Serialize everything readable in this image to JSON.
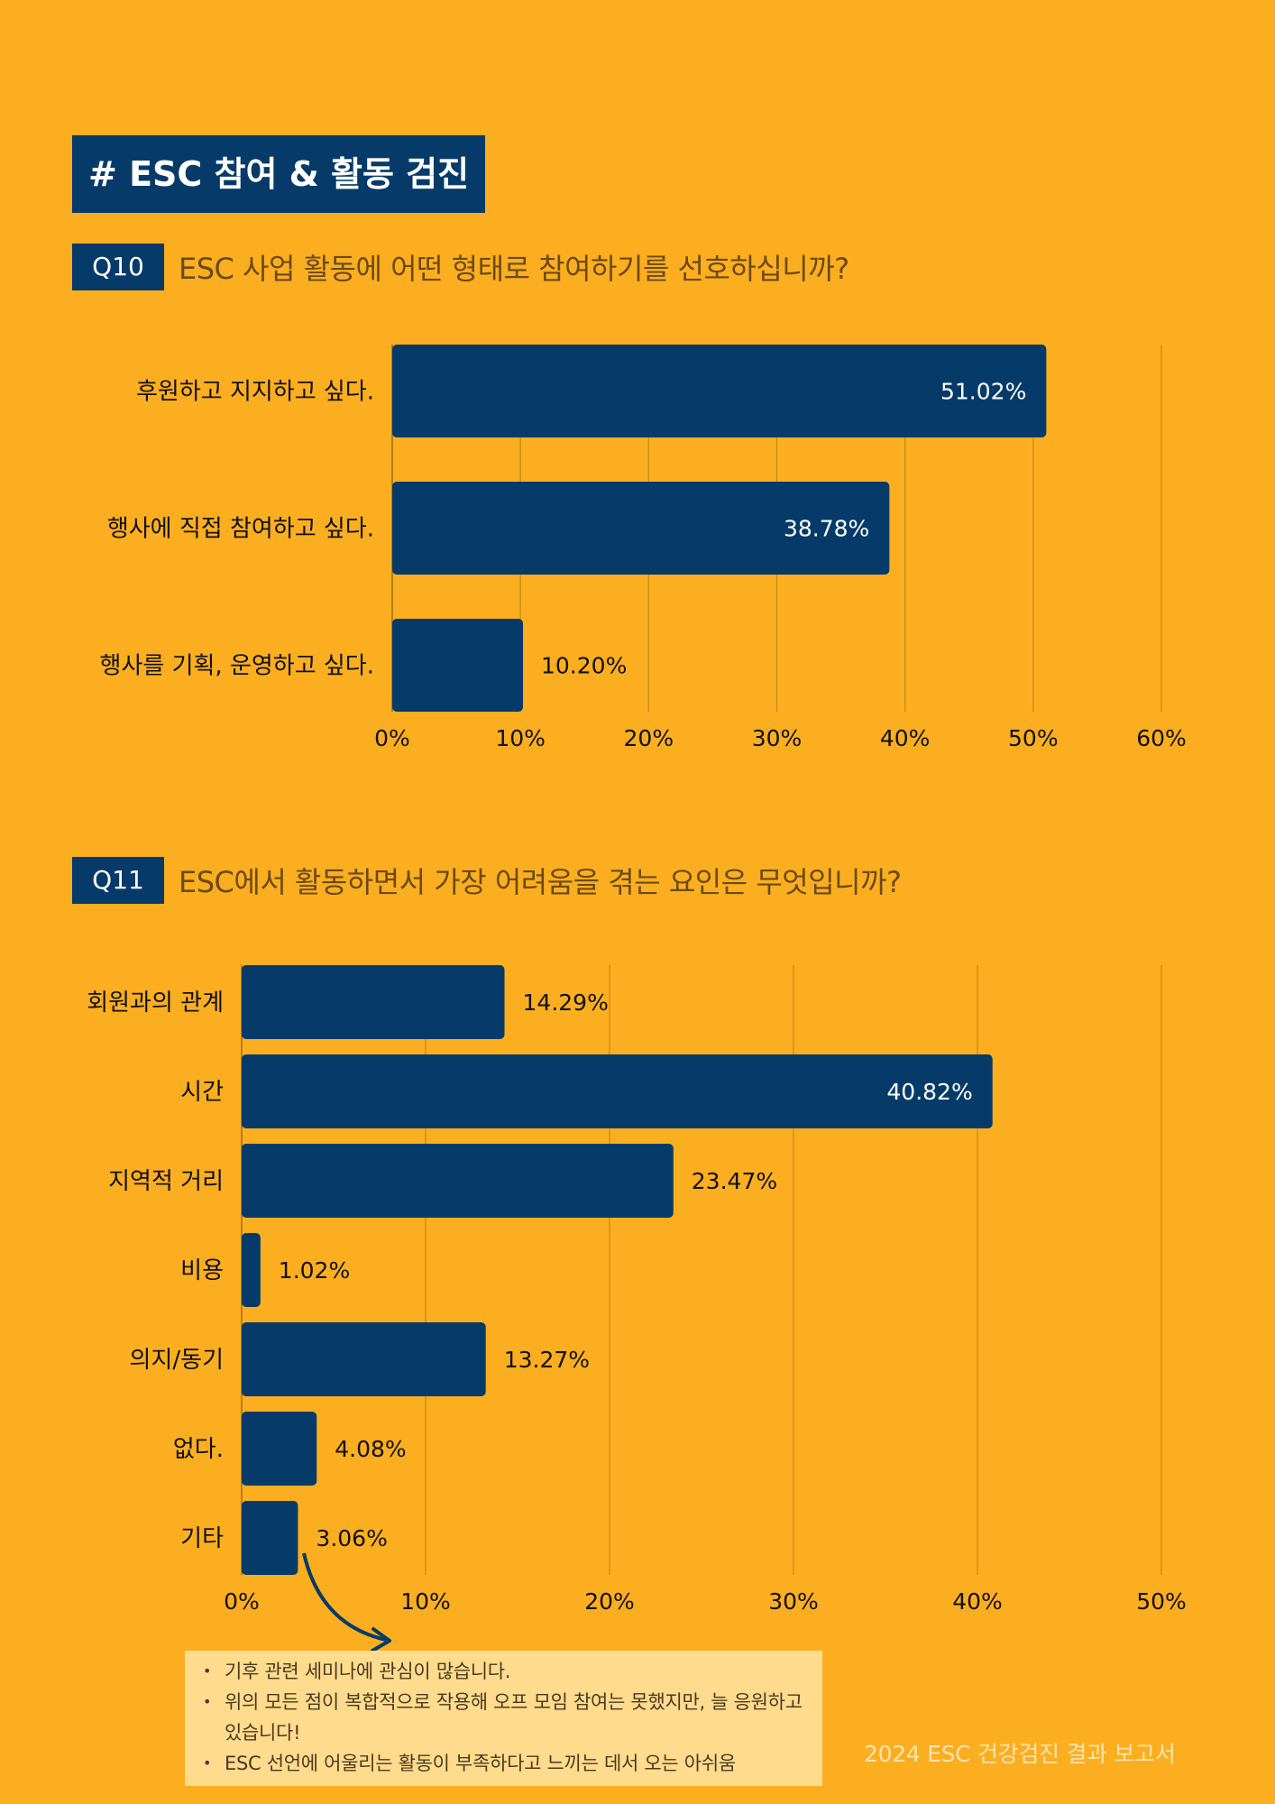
{
  "section_title": "# ESC 참여 & 활동 검진",
  "q10": {
    "badge": "Q10",
    "question": "ESC 사업 활동에 어떤 형태로 참여하기를 선호하십니까?"
  },
  "q11": {
    "badge": "Q11",
    "question": "ESC에서 활동하면서 가장 어려움을 겪는 요인은 무엇입니까?"
  },
  "chart_data": [
    {
      "type": "bar",
      "orientation": "horizontal",
      "categories": [
        "후원하고 지지하고 싶다.",
        "행사에 직접 참여하고 싶다.",
        "행사를 기획, 운영하고 싶다."
      ],
      "values": [
        51.02,
        38.78,
        10.2
      ],
      "data_labels": [
        "51.02%",
        "38.78%",
        "10.20%"
      ],
      "xlim": [
        0,
        60
      ],
      "xticks": [
        "0%",
        "10%",
        "20%",
        "30%",
        "40%",
        "50%",
        "60%"
      ],
      "bar_color": "#063B69",
      "grid": "vertical"
    },
    {
      "type": "bar",
      "orientation": "horizontal",
      "categories": [
        "회원과의 관계",
        "시간",
        "지역적 거리",
        "비용",
        "의지/동기",
        "없다.",
        "기타"
      ],
      "values": [
        14.29,
        40.82,
        23.47,
        1.02,
        13.27,
        4.08,
        3.06
      ],
      "data_labels": [
        "14.29%",
        "40.82%",
        "23.47%",
        "1.02%",
        "13.27%",
        "4.08%",
        "3.06%"
      ],
      "xlim": [
        0,
        50
      ],
      "xticks": [
        "0%",
        "10%",
        "20%",
        "30%",
        "40%",
        "50%"
      ],
      "bar_color": "#063B69",
      "grid": "vertical"
    }
  ],
  "notes": [
    "기후 관련 세미나에 관심이 많습니다.",
    "위의 모든 점이 복합적으로 작용해 오프 모임 참여는 못했지만, 늘 응원하고 있습니다!",
    "ESC 선언에 어울리는 활동이 부족하다고 느끼는 데서 오는 아쉬움"
  ],
  "footer": "2024 ESC 건강검진 결과 보고서",
  "colors": {
    "background": "#FBAE1F",
    "accent": "#063B69",
    "note_background": "#FFDB8D",
    "question_text": "#6B4A15"
  }
}
